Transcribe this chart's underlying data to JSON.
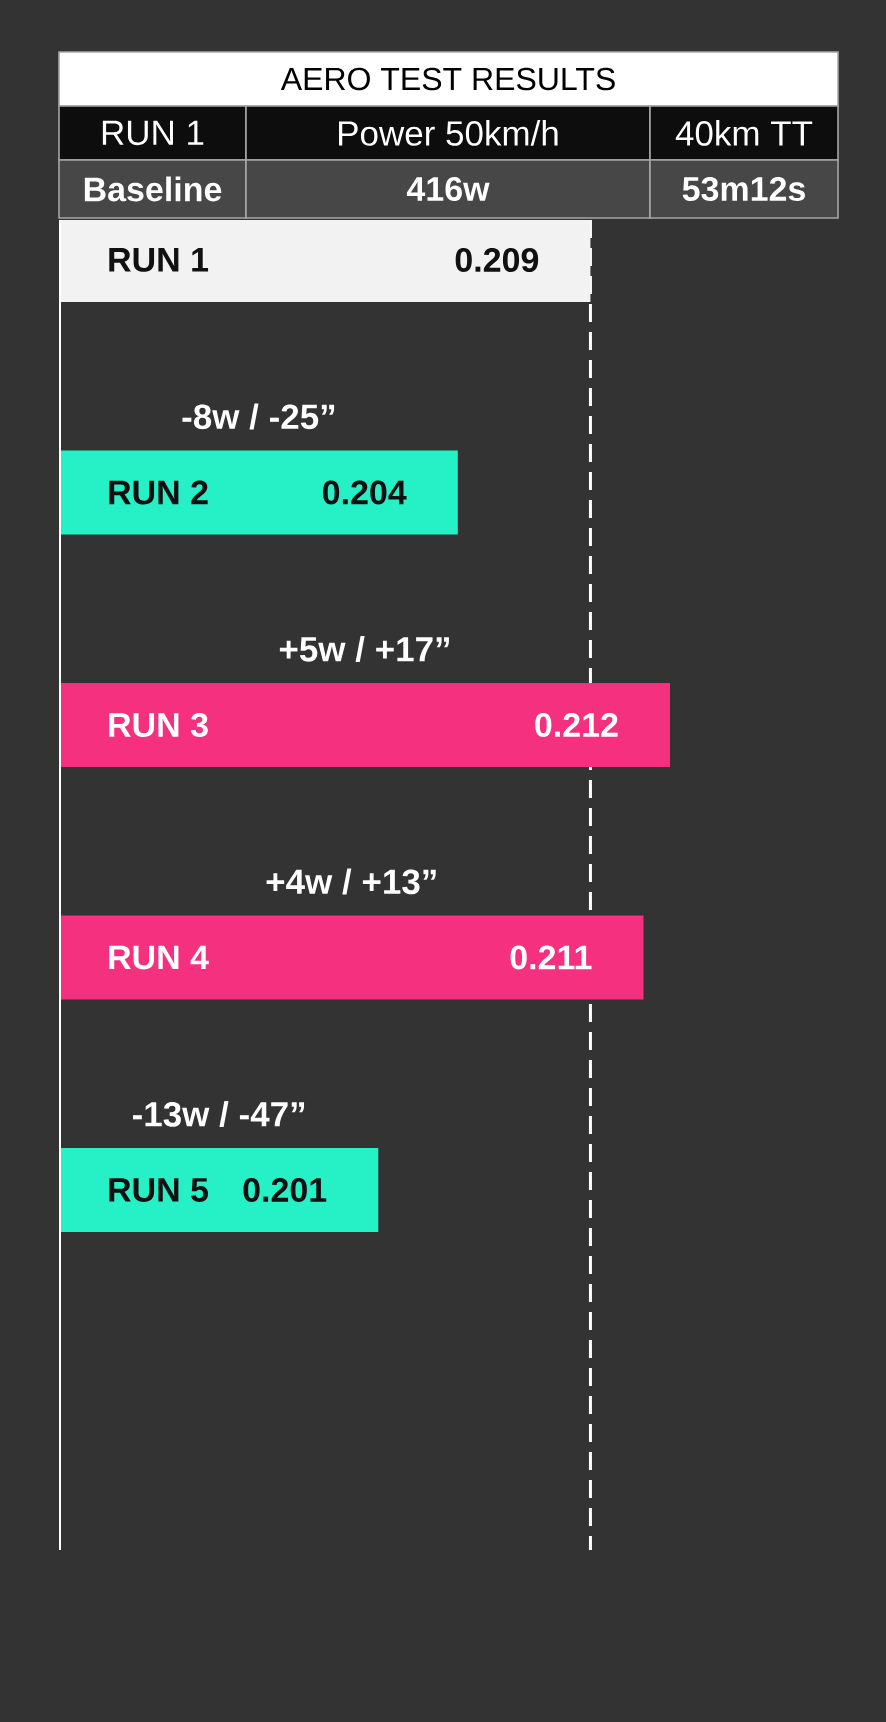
{
  "chart_data": {
    "type": "bar",
    "orientation": "horizontal",
    "title": "AERO TEST RESULTS",
    "categories": [
      "RUN 1",
      "RUN 2",
      "RUN 3",
      "RUN 4",
      "RUN 5"
    ],
    "values": [
      0.209,
      0.204,
      0.212,
      0.211,
      0.201
    ],
    "colors": [
      "#f2f2f2",
      "#26f0c6",
      "#f5317f",
      "#f5317f",
      "#26f0c6"
    ],
    "xlim": [
      0.189,
      0.212
    ],
    "data_labels": true,
    "tick_labels": "y",
    "ref_lines": [
      {
        "axis": "x",
        "value": 0.209,
        "color": "#ffffff",
        "line_style": "dashed"
      }
    ],
    "annotations": [
      "RUN 1",
      "Power 50km/h",
      "40km TT",
      "Baseline",
      "416w",
      "53m12s",
      "-8w / -25”",
      "+5w / +17”",
      "+4w / +13”",
      "-13w / -47”"
    ]
  }
}
